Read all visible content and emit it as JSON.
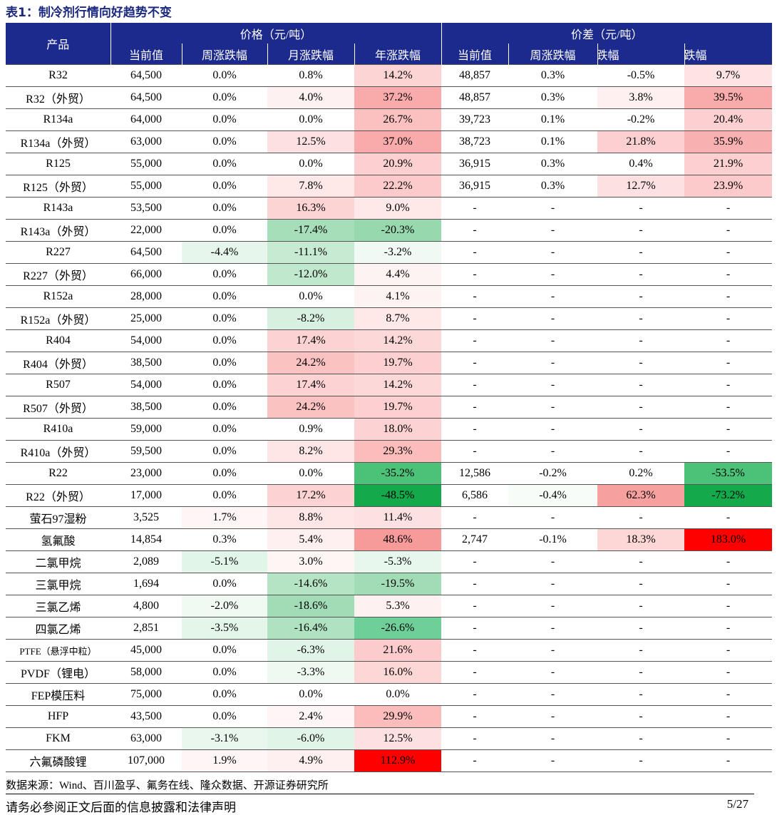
{
  "title": "表1：制冷剂行情向好趋势不变",
  "table": {
    "header": {
      "product": "产品",
      "groups": [
        "价格（元/吨）",
        "价差（元/吨）"
      ],
      "columns": [
        "当前值",
        "周涨跌幅",
        "月涨跌幅",
        "年涨跌幅",
        "当前值",
        "周涨跌幅",
        "月涨跌幅",
        "年涨跌幅"
      ]
    },
    "rows": [
      {
        "cells": [
          "R32",
          "64,500",
          "0.0%",
          "0.8%",
          "14.2%",
          "48,857",
          "0.3%",
          "-0.5%",
          "9.7%"
        ],
        "shade": [
          null,
          null,
          null,
          null,
          "#fcd4d4",
          null,
          null,
          null,
          "#fde3e3"
        ]
      },
      {
        "cells": [
          "R32（外贸）",
          "64,500",
          "0.0%",
          "4.0%",
          "37.2%",
          "48,857",
          "0.3%",
          "3.8%",
          "39.5%"
        ],
        "shade": [
          null,
          null,
          null,
          "#fef1f1",
          "#f9aaaa",
          null,
          null,
          "#fef0f0",
          "#f9aaaa"
        ]
      },
      {
        "cells": [
          "R134a",
          "64,000",
          "0.0%",
          "0.0%",
          "26.7%",
          "39,723",
          "0.1%",
          "-0.2%",
          "20.4%"
        ],
        "shade": [
          null,
          null,
          null,
          null,
          "#fbc0c0",
          null,
          null,
          null,
          "#fcd0d0"
        ]
      },
      {
        "cells": [
          "R134a（外贸）",
          "63,000",
          "0.0%",
          "12.5%",
          "37.0%",
          "38,723",
          "0.1%",
          "21.8%",
          "35.9%"
        ],
        "shade": [
          null,
          null,
          null,
          "#fde0e0",
          "#f9aaaa",
          null,
          null,
          "#fcd0d0",
          "#f9b0b0"
        ]
      },
      {
        "cells": [
          "R125",
          "55,000",
          "0.0%",
          "0.0%",
          "20.9%",
          "36,915",
          "0.3%",
          "0.4%",
          "21.9%"
        ],
        "shade": [
          null,
          null,
          null,
          null,
          "#fcd0d0",
          null,
          null,
          null,
          "#fcd0d0"
        ]
      },
      {
        "cells": [
          "R125（外贸）",
          "55,000",
          "0.0%",
          "7.8%",
          "22.2%",
          "36,915",
          "0.3%",
          "12.7%",
          "23.9%"
        ],
        "shade": [
          null,
          null,
          null,
          "#fee8e8",
          "#fccaca",
          null,
          null,
          "#fde0e0",
          "#fccaca"
        ]
      },
      {
        "cells": [
          "R143a",
          "53,500",
          "0.0%",
          "16.3%",
          "9.0%",
          "-",
          "-",
          "-",
          "-"
        ],
        "shade": [
          null,
          null,
          null,
          "#fcd4d4",
          "#fee8e8",
          null,
          null,
          null,
          null
        ]
      },
      {
        "cells": [
          "R143a（外贸）",
          "22,000",
          "0.0%",
          "-17.4%",
          "-20.3%",
          "-",
          "-",
          "-",
          "-"
        ],
        "shade": [
          null,
          null,
          null,
          "#a6deba",
          "#97d8ae",
          null,
          null,
          null,
          null
        ]
      },
      {
        "cells": [
          "R227",
          "64,500",
          "-4.4%",
          "-11.1%",
          "-3.2%",
          "-",
          "-",
          "-",
          "-"
        ],
        "shade": [
          null,
          null,
          "#e6f6ec",
          "#c6ead2",
          "#f0f9f3",
          null,
          null,
          null,
          null
        ]
      },
      {
        "cells": [
          "R227（外贸）",
          "66,000",
          "0.0%",
          "-12.0%",
          "4.4%",
          "-",
          "-",
          "-",
          "-"
        ],
        "shade": [
          null,
          null,
          null,
          "#c0e8cd",
          "#fef3f3",
          null,
          null,
          null,
          null
        ]
      },
      {
        "cells": [
          "R152a",
          "28,000",
          "0.0%",
          "0.0%",
          "4.1%",
          "-",
          "-",
          "-",
          "-"
        ],
        "shade": [
          null,
          null,
          null,
          null,
          "#fef3f3",
          null,
          null,
          null,
          null
        ]
      },
      {
        "cells": [
          "R152a（外贸）",
          "25,000",
          "0.0%",
          "-8.2%",
          "8.7%",
          "-",
          "-",
          "-",
          "-"
        ],
        "shade": [
          null,
          null,
          null,
          "#d8f0e0",
          "#fee8e8",
          null,
          null,
          null,
          null
        ]
      },
      {
        "cells": [
          "R404",
          "54,000",
          "0.0%",
          "17.4%",
          "14.2%",
          "-",
          "-",
          "-",
          "-"
        ],
        "shade": [
          null,
          null,
          null,
          "#fcd2d2",
          "#fdd8d8",
          null,
          null,
          null,
          null
        ]
      },
      {
        "cells": [
          "R404（外贸）",
          "38,500",
          "0.0%",
          "24.2%",
          "19.7%",
          "-",
          "-",
          "-",
          "-"
        ],
        "shade": [
          null,
          null,
          null,
          "#fbc2c2",
          "#fcd0d0",
          null,
          null,
          null,
          null
        ]
      },
      {
        "cells": [
          "R507",
          "54,000",
          "0.0%",
          "17.4%",
          "14.2%",
          "-",
          "-",
          "-",
          "-"
        ],
        "shade": [
          null,
          null,
          null,
          "#fcd2d2",
          "#fdd8d8",
          null,
          null,
          null,
          null
        ]
      },
      {
        "cells": [
          "R507（外贸）",
          "38,500",
          "0.0%",
          "24.2%",
          "19.7%",
          "-",
          "-",
          "-",
          "-"
        ],
        "shade": [
          null,
          null,
          null,
          "#fbc2c2",
          "#fcd0d0",
          null,
          null,
          null,
          null
        ]
      },
      {
        "cells": [
          "R410a",
          "59,000",
          "0.0%",
          "0.9%",
          "18.0%",
          "-",
          "-",
          "-",
          "-"
        ],
        "shade": [
          null,
          null,
          null,
          null,
          "#fcd2d2",
          null,
          null,
          null,
          null
        ]
      },
      {
        "cells": [
          "R410a（外贸）",
          "59,500",
          "0.0%",
          "8.2%",
          "29.3%",
          "-",
          "-",
          "-",
          "-"
        ],
        "shade": [
          null,
          null,
          null,
          "#fee6e6",
          "#fbbcbc",
          null,
          null,
          null,
          null
        ]
      },
      {
        "cells": [
          "R22",
          "23,000",
          "0.0%",
          "0.0%",
          "-35.2%",
          "12,586",
          "-0.2%",
          "0.2%",
          "-53.5%"
        ],
        "shade": [
          null,
          null,
          null,
          null,
          "#4cc178",
          null,
          null,
          null,
          "#4cc178"
        ]
      },
      {
        "cells": [
          "R22（外贸）",
          "17,000",
          "0.0%",
          "17.2%",
          "-48.5%",
          "6,586",
          "-0.4%",
          "62.3%",
          "-73.2%"
        ],
        "shade": [
          null,
          null,
          null,
          "#fcd2d2",
          "#14a94a",
          null,
          "#f8fcf9",
          "#f7a0a0",
          "#14a94a"
        ]
      },
      {
        "cells": [
          "萤石97湿粉",
          "3,525",
          "1.7%",
          "8.8%",
          "11.4%",
          "-",
          "-",
          "-",
          "-"
        ],
        "shade": [
          null,
          null,
          "#fef6f6",
          "#fee6e6",
          "#fde0e0",
          null,
          null,
          null,
          null
        ]
      },
      {
        "cells": [
          "氢氟酸",
          "14,854",
          "0.3%",
          "5.4%",
          "48.6%",
          "2,747",
          "-0.1%",
          "18.3%",
          "183.0%"
        ],
        "shade": [
          null,
          null,
          null,
          "#fef0f0",
          "#f79a9a",
          null,
          null,
          "#fdd6d6",
          "#ff0000"
        ]
      },
      {
        "cells": [
          "二氯甲烷",
          "2,089",
          "-5.1%",
          "3.0%",
          "-5.3%",
          "-",
          "-",
          "-",
          "-"
        ],
        "shade": [
          null,
          null,
          "#e2f5e9",
          "#fef5f5",
          "#e8f7ee",
          null,
          null,
          null,
          null
        ]
      },
      {
        "cells": [
          "三氯甲烷",
          "1,694",
          "0.0%",
          "-14.6%",
          "-19.5%",
          "-",
          "-",
          "-",
          "-"
        ],
        "shade": [
          null,
          null,
          null,
          "#b4e4c4",
          "#a2dcb6",
          null,
          null,
          null,
          null
        ]
      },
      {
        "cells": [
          "三氯乙烯",
          "4,800",
          "-2.0%",
          "-18.6%",
          "5.3%",
          "-",
          "-",
          "-",
          "-"
        ],
        "shade": [
          null,
          null,
          "#f0faf3",
          "#a2dcb6",
          "#fef1f1",
          null,
          null,
          null,
          null
        ]
      },
      {
        "cells": [
          "四氯乙烯",
          "2,851",
          "-3.5%",
          "-16.4%",
          "-26.6%",
          "-",
          "-",
          "-",
          "-"
        ],
        "shade": [
          null,
          null,
          "#e4f5ea",
          "#aee2c0",
          "#6fcf98",
          null,
          null,
          null,
          null
        ]
      },
      {
        "cells": [
          "PTFE（悬浮中粒）",
          "45,000",
          "0.0%",
          "-6.3%",
          "21.6%",
          "-",
          "-",
          "-",
          "-"
        ],
        "shade": [
          null,
          null,
          null,
          "#e1f4e8",
          "#fccccc",
          null,
          null,
          null,
          null
        ]
      },
      {
        "cells": [
          "PVDF（锂电）",
          "58,000",
          "0.0%",
          "-3.3%",
          "16.0%",
          "-",
          "-",
          "-",
          "-"
        ],
        "shade": [
          null,
          null,
          null,
          "#eef9f2",
          "#fdd6d6",
          null,
          null,
          null,
          null
        ]
      },
      {
        "cells": [
          "FEP模压料",
          "75,000",
          "0.0%",
          "0.0%",
          "0.0%",
          "-",
          "-",
          "-",
          "-"
        ],
        "shade": [
          null,
          null,
          null,
          null,
          null,
          null,
          null,
          null,
          null
        ]
      },
      {
        "cells": [
          "HFP",
          "43,500",
          "0.0%",
          "2.4%",
          "29.9%",
          "-",
          "-",
          "-",
          "-"
        ],
        "shade": [
          null,
          null,
          null,
          "#fef6f6",
          "#fbbcbc",
          null,
          null,
          null,
          null
        ]
      },
      {
        "cells": [
          "FKM",
          "63,000",
          "-3.1%",
          "-6.0%",
          "12.5%",
          "-",
          "-",
          "-",
          "-"
        ],
        "shade": [
          null,
          null,
          "#eaf7ef",
          "#e1f4e8",
          "#fde0e0",
          null,
          null,
          null,
          null
        ]
      },
      {
        "cells": [
          "六氟磷酸锂",
          "107,000",
          "1.9%",
          "4.9%",
          "112.9%",
          "-",
          "-",
          "-",
          "-"
        ],
        "shade": [
          null,
          null,
          "#fef6f6",
          "#fef0f0",
          "#ff0000",
          null,
          null,
          null,
          null
        ]
      }
    ]
  },
  "source": "数据来源：Wind、百川盈孚、氟务在线、隆众数据、开源证券研究所",
  "footer": {
    "disclaimer": "请务必参阅正文后面的信息披露和法律声明",
    "page": "5/27"
  }
}
